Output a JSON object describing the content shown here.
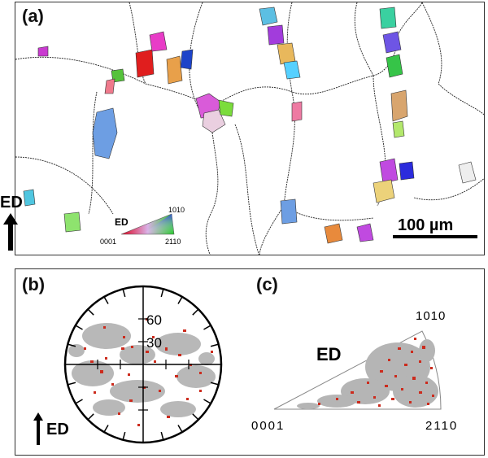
{
  "panel_a": {
    "label": "(a)",
    "scale_bar": "100 µm",
    "ed_label": "ED",
    "key": {
      "title": "ED",
      "corner_left": "0001",
      "corner_right": "2110",
      "corner_top": "1010"
    }
  },
  "panel_b": {
    "label": "(b)",
    "ring_60": "60",
    "ring_30": "30",
    "ed_label": "ED"
  },
  "panel_c": {
    "label": "(c)",
    "title": "ED",
    "corner_left": "0001",
    "corner_right": "2110",
    "corner_top": "1010"
  },
  "colors": {
    "red": "#cc2b1d",
    "gray": "#b5b5b5",
    "boundary": "#222222"
  }
}
